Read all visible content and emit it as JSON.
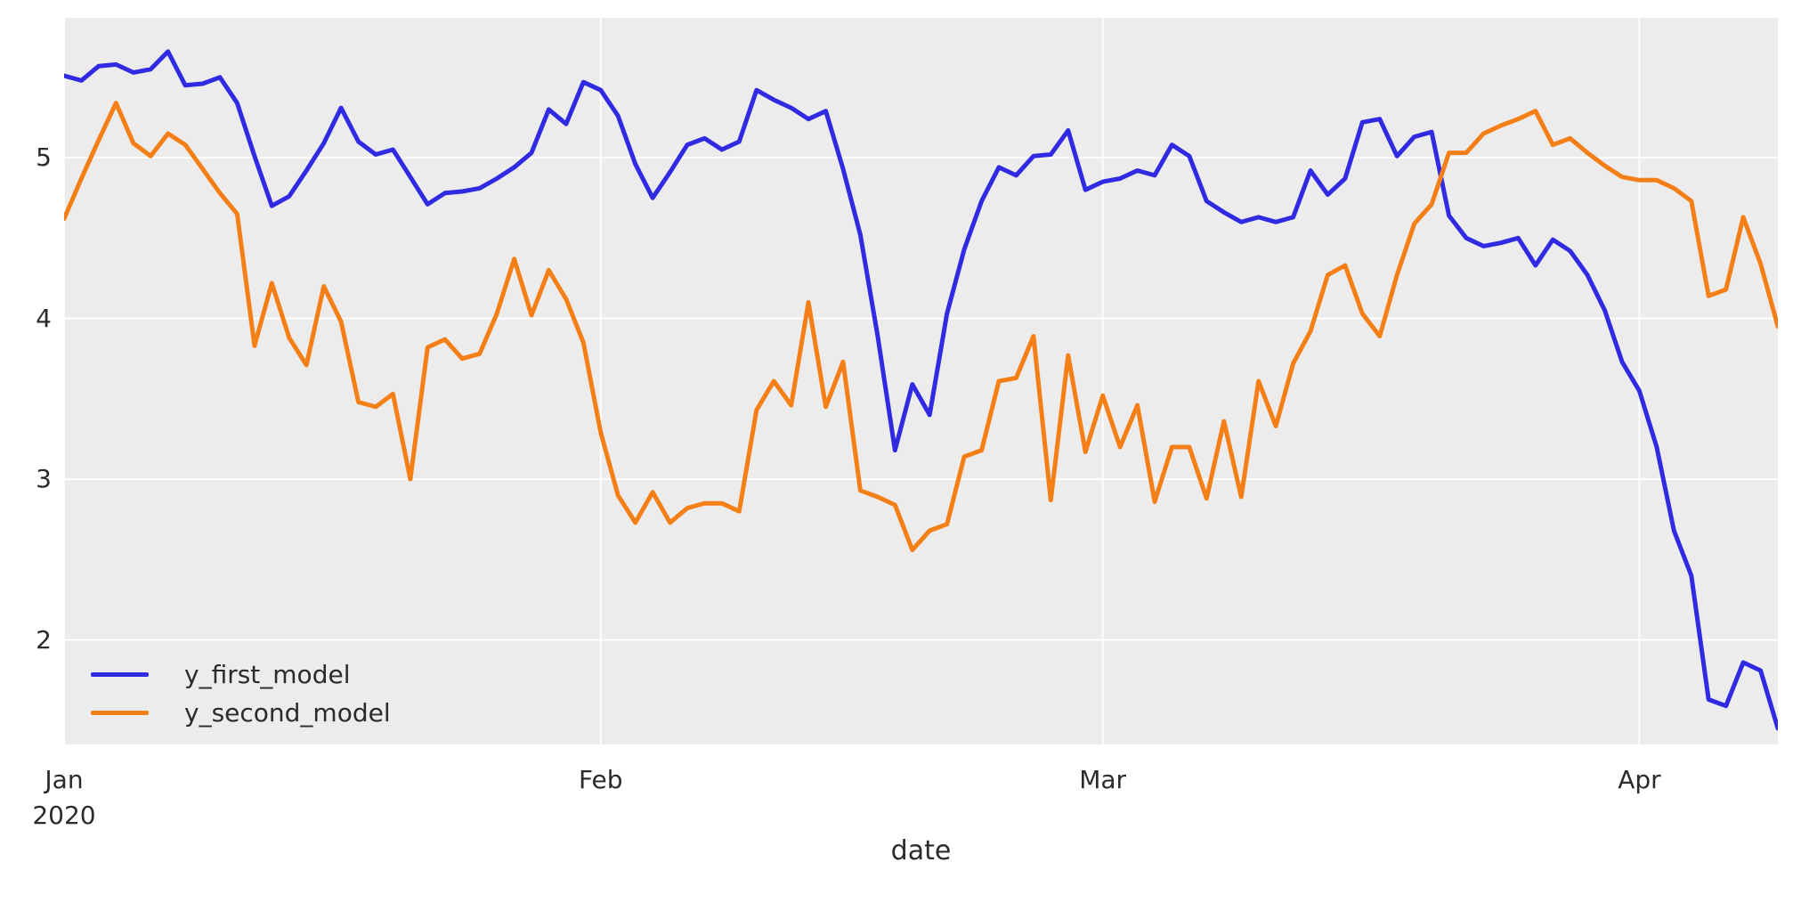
{
  "chart_data": {
    "type": "line",
    "xlabel": "date",
    "ylabel": "",
    "grid": true,
    "legend_position": "lower left",
    "background_color": "#ececec",
    "gridline_color": "#ffffff",
    "text_color": "#2b2b2b",
    "ylim": [
      1.35,
      5.87
    ],
    "y_ticks": [
      2,
      3,
      4,
      5
    ],
    "x_ticks": [
      {
        "label": "Jan",
        "sublabel": "2020",
        "date": "2020-01-01"
      },
      {
        "label": "Feb",
        "sublabel": "",
        "date": "2020-02-01"
      },
      {
        "label": "Mar",
        "sublabel": "",
        "date": "2020-03-01"
      },
      {
        "label": "Apr",
        "sublabel": "",
        "date": "2020-04-01"
      }
    ],
    "x": [
      "2020-01-01",
      "2020-01-02",
      "2020-01-03",
      "2020-01-04",
      "2020-01-05",
      "2020-01-06",
      "2020-01-07",
      "2020-01-08",
      "2020-01-09",
      "2020-01-10",
      "2020-01-11",
      "2020-01-12",
      "2020-01-13",
      "2020-01-14",
      "2020-01-15",
      "2020-01-16",
      "2020-01-17",
      "2020-01-18",
      "2020-01-19",
      "2020-01-20",
      "2020-01-21",
      "2020-01-22",
      "2020-01-23",
      "2020-01-24",
      "2020-01-25",
      "2020-01-26",
      "2020-01-27",
      "2020-01-28",
      "2020-01-29",
      "2020-01-30",
      "2020-01-31",
      "2020-02-01",
      "2020-02-02",
      "2020-02-03",
      "2020-02-04",
      "2020-02-05",
      "2020-02-06",
      "2020-02-07",
      "2020-02-08",
      "2020-02-09",
      "2020-02-10",
      "2020-02-11",
      "2020-02-12",
      "2020-02-13",
      "2020-02-14",
      "2020-02-15",
      "2020-02-16",
      "2020-02-17",
      "2020-02-18",
      "2020-02-19",
      "2020-02-20",
      "2020-02-21",
      "2020-02-22",
      "2020-02-23",
      "2020-02-24",
      "2020-02-25",
      "2020-02-26",
      "2020-02-27",
      "2020-02-28",
      "2020-02-29",
      "2020-03-01",
      "2020-03-02",
      "2020-03-03",
      "2020-03-04",
      "2020-03-05",
      "2020-03-06",
      "2020-03-07",
      "2020-03-08",
      "2020-03-09",
      "2020-03-10",
      "2020-03-11",
      "2020-03-12",
      "2020-03-13",
      "2020-03-14",
      "2020-03-15",
      "2020-03-16",
      "2020-03-17",
      "2020-03-18",
      "2020-03-19",
      "2020-03-20",
      "2020-03-21",
      "2020-03-22",
      "2020-03-23",
      "2020-03-24",
      "2020-03-25",
      "2020-03-26",
      "2020-03-27",
      "2020-03-28",
      "2020-03-29",
      "2020-03-30",
      "2020-03-31",
      "2020-04-01",
      "2020-04-02",
      "2020-04-03",
      "2020-04-04",
      "2020-04-05",
      "2020-04-06",
      "2020-04-07",
      "2020-04-08",
      "2020-04-09"
    ],
    "series": [
      {
        "name": "y_first_model",
        "color": "#302ae2",
        "values": [
          5.51,
          5.48,
          5.57,
          5.58,
          5.53,
          5.55,
          5.66,
          5.45,
          5.46,
          5.5,
          5.34,
          5.01,
          4.7,
          4.76,
          4.92,
          5.09,
          5.31,
          5.1,
          5.02,
          5.05,
          4.88,
          4.71,
          4.78,
          4.79,
          4.81,
          4.87,
          4.94,
          5.03,
          5.3,
          5.21,
          5.47,
          5.42,
          5.26,
          4.96,
          4.75,
          4.91,
          5.08,
          5.12,
          5.05,
          5.1,
          5.42,
          5.36,
          5.31,
          5.24,
          5.29,
          4.93,
          4.52,
          3.89,
          3.18,
          3.59,
          3.4,
          4.03,
          4.43,
          4.73,
          4.94,
          4.89,
          5.01,
          5.02,
          5.17,
          4.8,
          4.85,
          4.87,
          4.92,
          4.89,
          5.08,
          5.01,
          4.73,
          4.66,
          4.6,
          4.63,
          4.6,
          4.63,
          4.92,
          4.77,
          4.87,
          5.22,
          5.24,
          5.01,
          5.13,
          5.16,
          4.64,
          4.5,
          4.45,
          4.47,
          4.5,
          4.33,
          4.49,
          4.42,
          4.27,
          4.05,
          3.73,
          3.55,
          3.2,
          2.68,
          2.4,
          1.63,
          1.59,
          1.86,
          1.81,
          1.45
        ]
      },
      {
        "name": "y_second_model",
        "color": "#f57f17",
        "values": [
          4.62,
          4.87,
          5.11,
          5.34,
          5.09,
          5.01,
          5.15,
          5.08,
          4.93,
          4.78,
          4.65,
          3.83,
          4.22,
          3.88,
          3.71,
          4.2,
          3.98,
          3.48,
          3.45,
          3.53,
          3.0,
          3.82,
          3.87,
          3.75,
          3.78,
          4.03,
          4.37,
          4.02,
          4.3,
          4.12,
          3.85,
          3.29,
          2.9,
          2.73,
          2.92,
          2.73,
          2.82,
          2.85,
          2.85,
          2.8,
          3.43,
          3.61,
          3.46,
          4.1,
          3.45,
          3.73,
          2.93,
          2.89,
          2.84,
          2.56,
          2.68,
          2.72,
          3.14,
          3.18,
          3.61,
          3.63,
          3.89,
          2.87,
          3.77,
          3.17,
          3.52,
          3.2,
          3.46,
          2.86,
          3.2,
          3.2,
          2.88,
          3.36,
          2.89,
          3.61,
          3.33,
          3.72,
          3.92,
          4.27,
          4.33,
          4.03,
          3.89,
          4.27,
          4.59,
          4.71,
          5.03,
          5.03,
          5.15,
          5.2,
          5.24,
          5.29,
          5.08,
          5.12,
          5.03,
          4.95,
          4.88,
          4.86,
          4.86,
          4.81,
          4.73,
          4.14,
          4.18,
          4.63,
          4.34,
          3.95
        ]
      }
    ]
  }
}
